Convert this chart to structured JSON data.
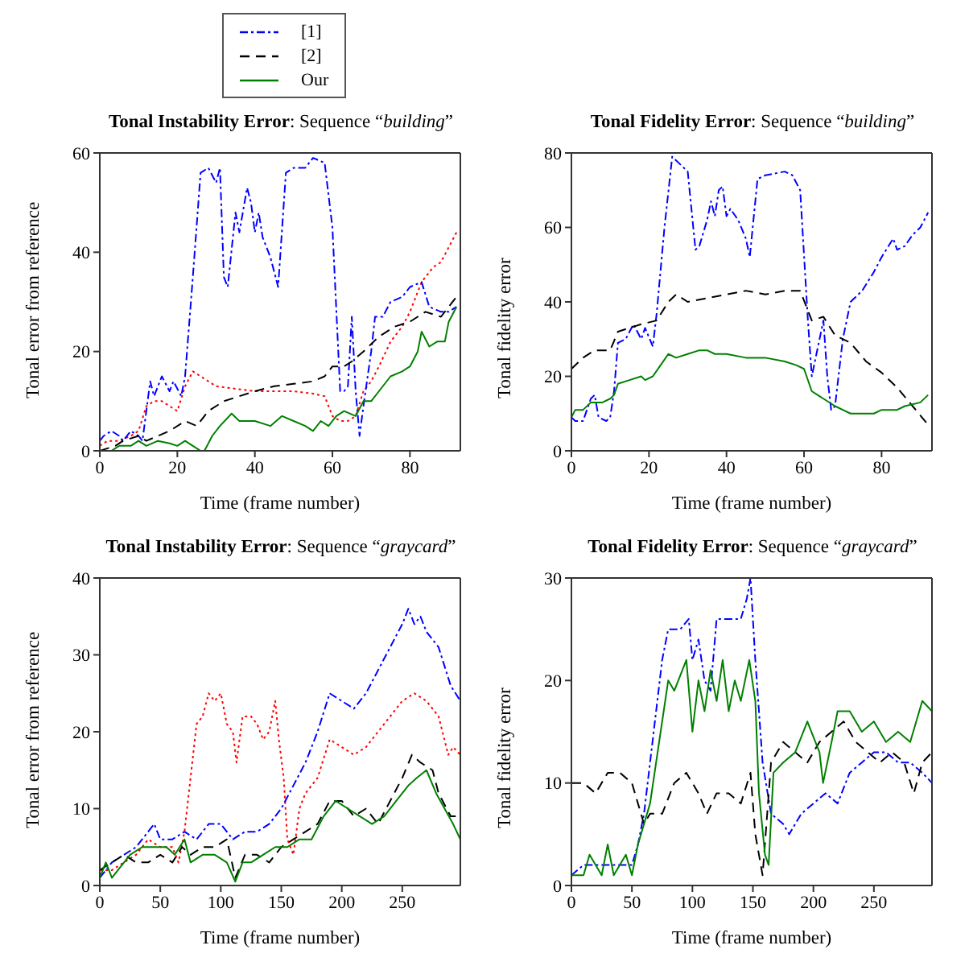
{
  "chart_data": [
    {
      "type": "line",
      "title": "Tonal Instability Error: Sequence “building”",
      "xlabel": "Time (frame number)",
      "ylabel": "Tonal error from reference",
      "xlim": [
        0,
        93
      ],
      "xticks": [
        0,
        20,
        40,
        60,
        80
      ],
      "ylim": [
        0,
        60
      ],
      "yticks": [
        0,
        20,
        40,
        60
      ],
      "legend": "top",
      "marker": "none",
      "series": [
        {
          "color": "#ff0000",
          "line_style": "dotted",
          "x": [
            0,
            2,
            5,
            8,
            10,
            12,
            14,
            16,
            18,
            20,
            22,
            24,
            26,
            28,
            30,
            35,
            40,
            45,
            50,
            55,
            58,
            60,
            62,
            64,
            66,
            68,
            70,
            72,
            75,
            78,
            80,
            83,
            86,
            88,
            90,
            92
          ],
          "values": [
            1,
            2,
            2,
            3,
            4,
            9,
            10,
            10,
            9,
            8,
            13,
            16,
            15,
            14,
            13,
            12.5,
            12,
            12,
            12,
            11.5,
            11,
            7,
            6,
            6,
            7,
            12,
            14,
            17,
            22,
            25,
            28,
            34,
            37,
            38,
            41,
            44
          ]
        },
        {
          "name": "[1]",
          "color": "#0000ff",
          "line_style": "dashdot",
          "x": [
            0,
            1,
            3,
            5,
            6,
            8,
            10,
            11,
            12,
            13,
            14,
            16,
            18,
            19,
            21,
            22,
            24,
            26,
            28,
            30,
            31,
            32,
            33,
            35,
            36,
            38,
            39,
            40,
            41,
            42,
            44,
            46,
            48,
            50,
            53,
            55,
            58,
            60,
            62,
            63,
            64,
            65,
            66,
            67,
            68,
            70,
            71,
            73,
            75,
            78,
            80,
            83,
            85,
            88,
            90,
            92
          ],
          "values": [
            2,
            3,
            4,
            3,
            2,
            4,
            3,
            2,
            8,
            14,
            11,
            15,
            12,
            14,
            11,
            15,
            35,
            56,
            57,
            54,
            57,
            35,
            33,
            48,
            44,
            53,
            50,
            44,
            48,
            43,
            39,
            33,
            56,
            57,
            57,
            59,
            58,
            45,
            12,
            12,
            13,
            27,
            12,
            3,
            9,
            20,
            27,
            27,
            30,
            31,
            33,
            34,
            29,
            28,
            28,
            29
          ]
        },
        {
          "name": "[2]",
          "color": "#000000",
          "line_style": "dashed",
          "x": [
            0,
            4,
            6,
            10,
            12,
            15,
            18,
            22,
            25,
            28,
            32,
            36,
            40,
            45,
            50,
            55,
            58,
            60,
            63,
            65,
            68,
            72,
            76,
            80,
            84,
            88,
            90,
            92
          ],
          "values": [
            0,
            1,
            2,
            3,
            2,
            3,
            4,
            6,
            5,
            8,
            10,
            11,
            12,
            13,
            13.5,
            14,
            15,
            17,
            17,
            18,
            20,
            23,
            25,
            26,
            28,
            27,
            29,
            31
          ]
        },
        {
          "name": "Our",
          "color": "#008000",
          "line_style": "solid",
          "x": [
            0,
            3,
            5,
            8,
            10,
            12,
            15,
            18,
            20,
            22,
            24,
            26,
            27,
            29,
            31,
            34,
            36,
            40,
            44,
            47,
            50,
            53,
            55,
            57,
            59,
            61,
            63,
            66,
            68,
            70,
            72,
            75,
            78,
            80,
            82,
            83,
            85,
            87,
            89,
            90,
            92
          ],
          "values": [
            0,
            0,
            1,
            1,
            2,
            1,
            2,
            1.5,
            1,
            2,
            1,
            0,
            0,
            3,
            5,
            7.5,
            6,
            6,
            5,
            7,
            6,
            5,
            4,
            6,
            5,
            7,
            8,
            7,
            10,
            10,
            12,
            15,
            16,
            17,
            20,
            24,
            21,
            22,
            22,
            26,
            29
          ]
        }
      ]
    },
    {
      "type": "line",
      "title": "Tonal Fidelity Error: Sequence “building”",
      "xlabel": "Time (frame number)",
      "ylabel": "Tonal fidelity error",
      "xlim": [
        0,
        93
      ],
      "xticks": [
        0,
        20,
        40,
        60,
        80
      ],
      "ylim": [
        0,
        80
      ],
      "yticks": [
        0,
        20,
        40,
        60,
        80
      ],
      "legend": false,
      "marker": "none",
      "series": [
        {
          "color": "#0000ff",
          "line_style": "dashdot",
          "x": [
            0,
            1,
            3,
            5,
            6,
            7,
            9,
            10,
            11,
            12,
            14,
            16,
            18,
            19,
            21,
            22,
            24,
            26,
            28,
            30,
            32,
            33,
            35,
            36,
            37,
            38,
            39,
            40,
            41,
            43,
            45,
            46,
            48,
            50,
            55,
            57,
            59,
            61,
            62,
            64,
            65,
            66,
            67,
            68,
            70,
            72,
            75,
            78,
            80,
            83,
            84,
            86,
            88,
            90,
            92
          ],
          "values": [
            9,
            8,
            8,
            14,
            15,
            9,
            8,
            9,
            16,
            29,
            30,
            34,
            30,
            33,
            28,
            37,
            60,
            79,
            77,
            75,
            54,
            55,
            62,
            67,
            63,
            70,
            71,
            63,
            65,
            62,
            57,
            52,
            73,
            74,
            75,
            74,
            70,
            35,
            20,
            30,
            35,
            20,
            11,
            12,
            30,
            40,
            43,
            48,
            52,
            57,
            54,
            55,
            58,
            60,
            64
          ]
        },
        {
          "color": "#000000",
          "line_style": "dashed",
          "x": [
            0,
            3,
            6,
            10,
            12,
            15,
            18,
            22,
            25,
            27,
            30,
            35,
            40,
            45,
            50,
            55,
            59,
            62,
            65,
            68,
            72,
            76,
            80,
            84,
            88,
            92
          ],
          "values": [
            22,
            25,
            27,
            27,
            32,
            33,
            34,
            35,
            40,
            42,
            40,
            41,
            42,
            43,
            42,
            43,
            43,
            35,
            36,
            31,
            29,
            24,
            21,
            17,
            12,
            7
          ]
        },
        {
          "color": "#008000",
          "line_style": "solid",
          "x": [
            0,
            1,
            3,
            5,
            8,
            10,
            11,
            12,
            15,
            18,
            19,
            21,
            23,
            25,
            27,
            30,
            33,
            35,
            37,
            40,
            45,
            50,
            55,
            58,
            60,
            62,
            65,
            68,
            72,
            75,
            78,
            80,
            84,
            86,
            90,
            92
          ],
          "values": [
            9,
            11,
            11,
            13,
            13,
            14,
            15,
            18,
            19,
            20,
            19,
            20,
            23,
            26,
            25,
            26,
            27,
            27,
            26,
            26,
            25,
            25,
            24,
            23,
            22,
            16,
            14,
            12,
            10,
            10,
            10,
            11,
            11,
            12,
            13,
            15
          ]
        }
      ]
    },
    {
      "type": "line",
      "title": "Tonal Instability Error: Sequence “graycard”",
      "xlabel": "Time (frame number)",
      "ylabel": "Tonal error from reference",
      "xlim": [
        0,
        298
      ],
      "xticks": [
        0,
        50,
        100,
        150,
        200,
        250
      ],
      "ylim": [
        0,
        40
      ],
      "yticks": [
        0,
        10,
        20,
        30,
        40
      ],
      "legend": false,
      "marker": "none",
      "series": [
        {
          "color": "#ff0000",
          "line_style": "dotted",
          "x": [
            0,
            10,
            20,
            30,
            40,
            50,
            60,
            65,
            70,
            75,
            80,
            85,
            90,
            95,
            100,
            105,
            110,
            113,
            118,
            125,
            130,
            135,
            140,
            145,
            148,
            152,
            155,
            160,
            165,
            170,
            180,
            190,
            200,
            210,
            220,
            230,
            240,
            250,
            260,
            270,
            280,
            288,
            292,
            298
          ],
          "values": [
            2,
            2,
            3,
            4,
            6,
            5,
            5,
            3,
            7,
            14,
            21,
            22,
            25,
            24,
            25,
            21,
            20,
            16,
            22,
            22,
            21,
            19,
            20,
            24,
            19,
            14,
            6,
            4,
            10,
            12,
            14,
            19,
            18,
            17,
            18,
            20,
            22,
            24,
            25,
            24,
            22,
            17,
            18,
            17
          ]
        },
        {
          "color": "#0000ff",
          "line_style": "dashdot",
          "x": [
            0,
            10,
            20,
            30,
            40,
            45,
            50,
            60,
            70,
            80,
            90,
            100,
            110,
            120,
            130,
            140,
            150,
            160,
            170,
            180,
            190,
            200,
            210,
            220,
            230,
            240,
            250,
            255,
            260,
            265,
            270,
            280,
            290,
            298
          ],
          "values": [
            1,
            3,
            4,
            5,
            7,
            8,
            6,
            6,
            7,
            6,
            8,
            8,
            6,
            7,
            7,
            8,
            10,
            13,
            16,
            20,
            25,
            24,
            23,
            25,
            28,
            31,
            34,
            36,
            34,
            35,
            33,
            31,
            26,
            24
          ]
        },
        {
          "color": "#000000",
          "line_style": "dashed",
          "x": [
            0,
            10,
            20,
            30,
            40,
            50,
            60,
            68,
            75,
            85,
            95,
            105,
            112,
            120,
            130,
            140,
            150,
            160,
            170,
            180,
            190,
            200,
            210,
            220,
            230,
            240,
            250,
            258,
            265,
            275,
            280,
            290,
            298
          ],
          "values": [
            2,
            3,
            4,
            3,
            3,
            4,
            3,
            5,
            4,
            5,
            5,
            6,
            1,
            4,
            4,
            3,
            5,
            6,
            7,
            8,
            11,
            11,
            9,
            10,
            8,
            11,
            14,
            17,
            16,
            15,
            12,
            9,
            9
          ]
        },
        {
          "color": "#008000",
          "line_style": "solid",
          "x": [
            0,
            5,
            10,
            15,
            25,
            35,
            45,
            55,
            62,
            70,
            75,
            85,
            95,
            105,
            112,
            118,
            125,
            135,
            145,
            155,
            165,
            175,
            185,
            195,
            205,
            215,
            225,
            235,
            245,
            255,
            262,
            270,
            278,
            285,
            292,
            298
          ],
          "values": [
            1,
            3,
            1,
            2,
            4,
            5,
            5,
            5,
            4,
            6,
            3,
            4,
            4,
            3,
            0.5,
            3,
            3,
            4,
            5,
            5,
            6,
            6,
            9,
            11,
            10,
            9,
            8,
            9,
            11,
            13,
            14,
            15,
            12,
            10,
            8,
            6
          ]
        }
      ]
    },
    {
      "type": "line",
      "title": "Tonal Fidelity Error: Sequence “graycard”",
      "xlabel": "Time (frame number)",
      "ylabel": "Tonal fidelity error",
      "xlim": [
        0,
        298
      ],
      "xticks": [
        0,
        50,
        100,
        150,
        200,
        250
      ],
      "ylim": [
        0,
        30
      ],
      "yticks": [
        0,
        10,
        20,
        30
      ],
      "legend": false,
      "marker": "none",
      "series": [
        {
          "color": "#0000ff",
          "line_style": "dashdot",
          "x": [
            0,
            10,
            20,
            30,
            40,
            50,
            55,
            60,
            65,
            70,
            75,
            80,
            90,
            97,
            100,
            105,
            110,
            115,
            120,
            130,
            140,
            145,
            148,
            152,
            158,
            165,
            175,
            180,
            190,
            200,
            210,
            220,
            230,
            240,
            250,
            260,
            270,
            280,
            290,
            298
          ],
          "values": [
            1,
            2,
            2,
            2,
            2,
            2,
            4,
            7,
            12,
            17,
            22,
            25,
            25,
            26,
            22,
            24,
            20,
            19,
            26,
            26,
            26,
            28,
            30,
            22,
            12,
            7,
            6,
            5,
            7,
            8,
            9,
            8,
            11,
            12,
            13,
            13,
            12,
            12,
            11,
            10
          ]
        },
        {
          "color": "#000000",
          "line_style": "dashed",
          "x": [
            0,
            10,
            20,
            30,
            40,
            50,
            55,
            60,
            65,
            70,
            75,
            85,
            95,
            105,
            112,
            120,
            130,
            140,
            148,
            152,
            158,
            165,
            175,
            185,
            195,
            205,
            215,
            225,
            235,
            245,
            255,
            265,
            275,
            283,
            290,
            298
          ],
          "values": [
            10,
            10,
            9,
            11,
            11,
            10,
            8,
            6,
            7,
            7,
            7,
            10,
            11,
            9,
            7,
            9,
            9,
            8,
            11,
            5,
            1,
            12,
            14,
            13,
            12,
            14,
            15,
            16,
            14,
            13,
            12,
            13,
            12,
            9,
            12,
            13
          ]
        },
        {
          "color": "#008000",
          "line_style": "solid",
          "x": [
            0,
            10,
            15,
            20,
            25,
            30,
            35,
            45,
            50,
            55,
            60,
            65,
            70,
            75,
            80,
            85,
            95,
            100,
            105,
            110,
            115,
            120,
            125,
            130,
            135,
            140,
            147,
            152,
            155,
            160,
            163,
            167,
            175,
            185,
            195,
            205,
            208,
            215,
            220,
            230,
            240,
            250,
            260,
            270,
            280,
            290,
            298
          ],
          "values": [
            1,
            1,
            3,
            2,
            1,
            4,
            1,
            3,
            1,
            4,
            6,
            8,
            12,
            16,
            20,
            19,
            22,
            15,
            20,
            17,
            21,
            18,
            22,
            17,
            20,
            18,
            22,
            18,
            9,
            3,
            2,
            11,
            12,
            13,
            16,
            13,
            10,
            14,
            17,
            17,
            15,
            16,
            14,
            15,
            14,
            18,
            17
          ]
        }
      ]
    }
  ]
}
